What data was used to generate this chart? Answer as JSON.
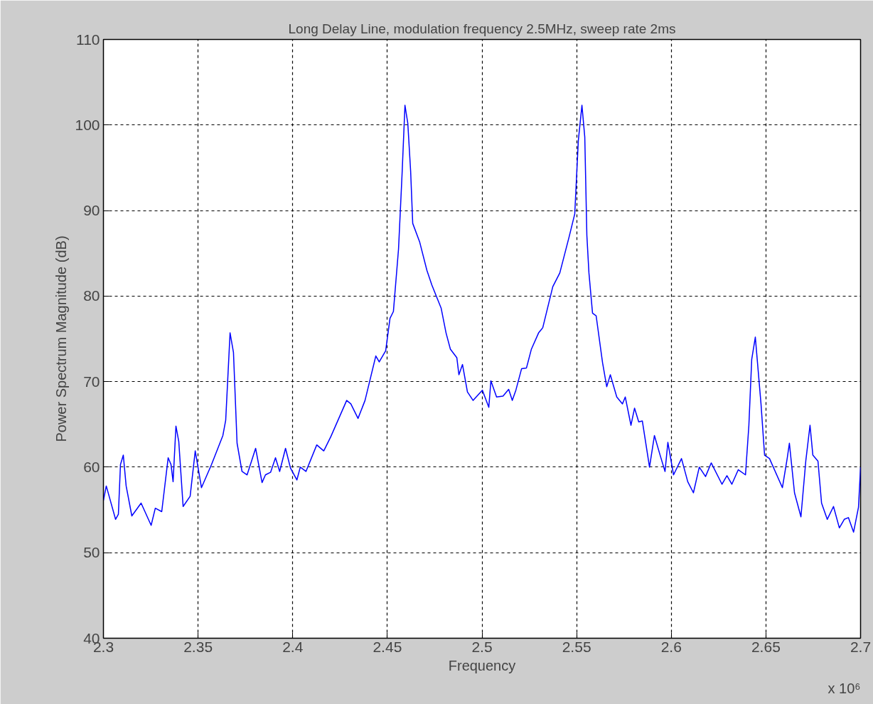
{
  "chart_data": {
    "type": "line",
    "title": "Long Delay Line, modulation frequency 2.5MHz, sweep rate 2ms",
    "xlabel": "Frequency",
    "ylabel": "Power Spectrum Magnitude (dB)",
    "annotations": [
      "x 10⁶"
    ],
    "xlim": [
      2.3,
      2.7
    ],
    "ylim": [
      40,
      110
    ],
    "xticks": [
      2.3,
      2.35,
      2.4,
      2.45,
      2.5,
      2.55,
      2.6,
      2.65,
      2.7
    ],
    "yticks": [
      40,
      50,
      60,
      70,
      80,
      90,
      100,
      110
    ],
    "grid": true,
    "line_style": "solid",
    "series": [
      {
        "color": "#0000ff",
        "x": [
          2.3,
          2.3015,
          2.3064,
          2.3079,
          2.309,
          2.3105,
          2.312,
          2.315,
          2.3199,
          2.3252,
          2.3274,
          2.3308,
          2.3342,
          2.3357,
          2.3368,
          2.3383,
          2.3398,
          2.3421,
          2.3458,
          2.3485,
          2.3518,
          2.3571,
          2.3631,
          2.3646,
          2.3669,
          2.3687,
          2.3706,
          2.3732,
          2.3759,
          2.3804,
          2.3838,
          2.3856,
          2.3883,
          2.3909,
          2.3931,
          2.3962,
          2.3988,
          2.4022,
          2.404,
          2.407,
          2.4127,
          2.4164,
          2.4202,
          2.4285,
          2.4307,
          2.4345,
          2.4382,
          2.4439,
          2.4457,
          2.4491,
          2.4514,
          2.4532,
          2.4559,
          2.4578,
          2.4593,
          2.4608,
          2.4623,
          2.4634,
          2.4671,
          2.4709,
          2.4735,
          2.4784,
          2.481,
          2.4833,
          2.4867,
          2.4878,
          2.4897,
          2.4923,
          2.4953,
          2.5002,
          2.5036,
          2.5047,
          2.5077,
          2.5111,
          2.5141,
          2.516,
          2.5179,
          2.5209,
          2.5235,
          2.5261,
          2.5299,
          2.5321,
          2.5374,
          2.5411,
          2.546,
          2.549,
          2.5509,
          2.5528,
          2.5543,
          2.5554,
          2.5565,
          2.5584,
          2.5603,
          2.5637,
          2.5659,
          2.5678,
          2.5712,
          2.5742,
          2.5757,
          2.5787,
          2.5806,
          2.5828,
          2.5847,
          2.5885,
          2.5911,
          2.5941,
          2.5967,
          2.5982,
          2.6012,
          2.6054,
          2.6087,
          2.6117,
          2.6148,
          2.6181,
          2.6211,
          2.6268,
          2.6294,
          2.632,
          2.6354,
          2.6392,
          2.641,
          2.6425,
          2.6444,
          2.6474,
          2.6493,
          2.6519,
          2.6587,
          2.6613,
          2.6624,
          2.6651,
          2.6685,
          2.6711,
          2.6733,
          2.6748,
          2.6775,
          2.6794,
          2.6824,
          2.6857,
          2.6888,
          2.6914,
          2.6936,
          2.6963,
          2.6989,
          2.7
        ],
        "values": [
          56.1,
          57.8,
          53.9,
          54.5,
          60.3,
          61.4,
          57.8,
          54.3,
          55.8,
          53.2,
          55.2,
          54.8,
          61.1,
          60.3,
          58.3,
          64.8,
          63.0,
          55.4,
          56.6,
          61.9,
          57.6,
          60.3,
          63.7,
          65.5,
          75.7,
          73.4,
          62.8,
          59.5,
          59.1,
          62.2,
          58.2,
          59.1,
          59.4,
          61.1,
          59.5,
          62.2,
          59.9,
          58.5,
          60.0,
          59.5,
          62.6,
          61.9,
          63.6,
          67.8,
          67.4,
          65.7,
          67.8,
          73.0,
          72.3,
          73.6,
          77.4,
          78.2,
          85.5,
          94.4,
          102.3,
          100.2,
          94.6,
          88.5,
          86.3,
          83.0,
          81.3,
          78.6,
          75.7,
          73.8,
          72.8,
          70.8,
          72.0,
          68.8,
          67.8,
          69.0,
          67.0,
          70.1,
          68.2,
          68.3,
          69.1,
          67.8,
          69.0,
          71.5,
          71.6,
          73.8,
          75.7,
          76.3,
          81.1,
          82.7,
          86.9,
          89.6,
          98.2,
          102.3,
          98.6,
          87.1,
          82.7,
          78.0,
          77.7,
          72.2,
          69.4,
          70.8,
          68.2,
          67.4,
          68.2,
          64.9,
          66.9,
          65.3,
          65.4,
          60.0,
          63.7,
          61.4,
          59.5,
          62.9,
          59.1,
          61.0,
          58.3,
          57.0,
          60.0,
          58.9,
          60.5,
          58.0,
          59.0,
          58.0,
          59.7,
          59.1,
          64.9,
          72.6,
          75.2,
          67.4,
          61.4,
          61.0,
          57.6,
          61.1,
          62.8,
          57.0,
          54.2,
          60.8,
          64.9,
          61.4,
          60.7,
          55.8,
          53.9,
          55.4,
          52.9,
          53.9,
          54.1,
          52.4,
          55.3,
          60.0
        ]
      }
    ]
  }
}
